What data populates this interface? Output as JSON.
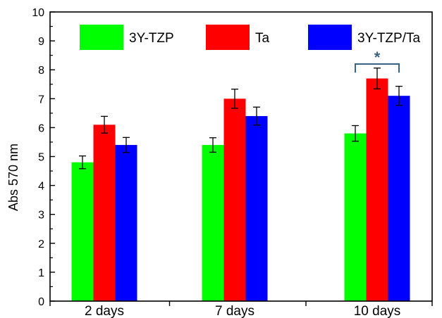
{
  "chart_data": {
    "type": "bar",
    "title": "",
    "xlabel": "",
    "ylabel": "Abs 570 nm",
    "ylim": [
      0,
      10
    ],
    "yticks": [
      0,
      1,
      2,
      3,
      4,
      5,
      6,
      7,
      8,
      9,
      10
    ],
    "categories": [
      "2 days",
      "7 days",
      "10 days"
    ],
    "series": [
      {
        "name": "3Y-TZP",
        "color": "#00ff00",
        "values": [
          4.8,
          5.4,
          5.8
        ],
        "errors": [
          0.22,
          0.25,
          0.27
        ]
      },
      {
        "name": "Ta",
        "color": "#ff0000",
        "values": [
          6.1,
          7.0,
          7.7
        ],
        "errors": [
          0.29,
          0.33,
          0.36
        ]
      },
      {
        "name": "3Y-TZP/Ta",
        "color": "#0000ff",
        "values": [
          5.4,
          6.4,
          7.1
        ],
        "errors": [
          0.26,
          0.31,
          0.33
        ]
      }
    ],
    "legend_position": "top",
    "annotations": [
      {
        "text": "*",
        "category": "10 days",
        "between": [
          "3Y-TZP",
          "3Y-TZP/Ta"
        ],
        "color": "#3c6283"
      }
    ]
  }
}
